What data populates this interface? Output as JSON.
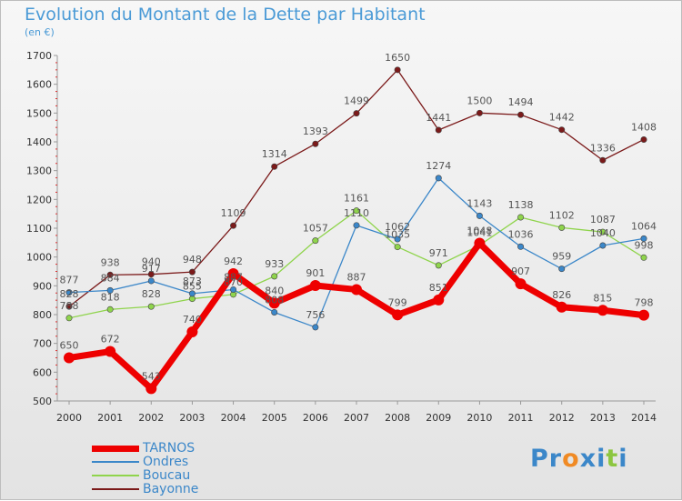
{
  "title": "Evolution du Montant de la Dette par Habitant",
  "subtitle": "(en €)",
  "logo": {
    "text": "Proxiti",
    "letters": [
      "P",
      "r",
      "o",
      "x",
      "i",
      "t",
      "i"
    ],
    "colors": [
      "#3b87c9",
      "#3b87c9",
      "#f08a24",
      "#3b87c9",
      "#3b87c9",
      "#8cc640",
      "#3b87c9"
    ]
  },
  "chart_data": {
    "type": "line",
    "title": "Evolution du Montant de la Dette par Habitant",
    "ylabel": "(en €)",
    "x": [
      "2000",
      "2001",
      "2002",
      "2003",
      "2004",
      "2005",
      "2006",
      "2007",
      "2008",
      "2009",
      "2010",
      "2011",
      "2012",
      "2013",
      "2014"
    ],
    "ylim": [
      500,
      1700
    ],
    "yticks": [
      500,
      600,
      700,
      800,
      900,
      1000,
      1100,
      1200,
      1300,
      1400,
      1500,
      1600,
      1700
    ],
    "grid": false,
    "legend_position": "bottom-left",
    "series": [
      {
        "name": "Bayonne",
        "color": "#7b1a1a",
        "values": [
          828,
          938,
          940,
          948,
          1109,
          1314,
          1393,
          1499,
          1650,
          1441,
          1500,
          1494,
          1442,
          1336,
          1408
        ]
      },
      {
        "name": "Boucau",
        "color": "#8fd44c",
        "values": [
          788,
          818,
          828,
          855,
          870,
          933,
          1057,
          1161,
          1035,
          971,
          1041,
          1138,
          1102,
          1087,
          998
        ]
      },
      {
        "name": "Ondres",
        "color": "#3b87c9",
        "values": [
          877,
          884,
          917,
          873,
          887,
          808,
          756,
          1110,
          1062,
          1274,
          1143,
          1036,
          959,
          1040,
          1064
        ]
      },
      {
        "name": "TARNOS",
        "color": "#ee0000",
        "values": [
          650,
          672,
          543,
          740,
          942,
          840,
          901,
          887,
          799,
          851,
          1048,
          907,
          826,
          815,
          798
        ]
      }
    ]
  }
}
